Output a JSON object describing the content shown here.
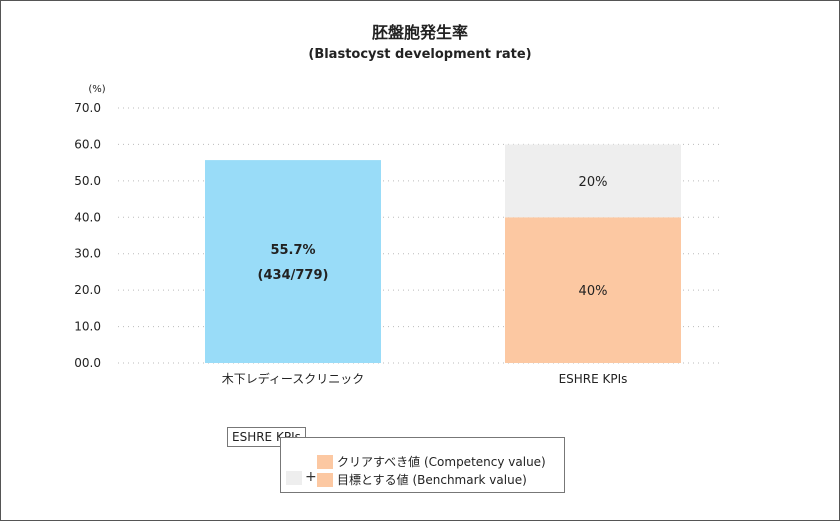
{
  "chart_data": {
    "type": "bar",
    "title": "胚盤胞発生率",
    "subtitle": "(Blastocyst development rate)",
    "yunit": "(%)",
    "ylim": [
      0,
      70
    ],
    "yticks": [
      "00.0",
      "10.0",
      "20.0",
      "30.0",
      "40.0",
      "50.0",
      "60.0",
      "70.0"
    ],
    "grid": true,
    "categories": [
      "木下レディースクリニック",
      "ESHRE KPIs"
    ],
    "bars": [
      {
        "category": "木下レディースクリニック",
        "segments": [
          {
            "value": 55.7,
            "color": "#99dcf8",
            "labels": [
              "55.7%",
              "(434/779)"
            ]
          }
        ]
      },
      {
        "category": "ESHRE KPIs",
        "segments": [
          {
            "value": 40,
            "color": "#fcc8a2",
            "labels": [
              "40%"
            ]
          },
          {
            "value": 20,
            "color": "#eeeeee",
            "labels": [
              "20%"
            ]
          }
        ]
      }
    ]
  },
  "legend": {
    "tag": "ESHRE KPIs",
    "items": [
      {
        "label": "クリアすべき値 (Competency value)",
        "color": "#fcc8a2"
      },
      {
        "label": "目標とする値 (Benchmark value)",
        "color": "#fcc8a2"
      }
    ],
    "extra_swatch_color": "#eeeeee",
    "plus": "+"
  }
}
